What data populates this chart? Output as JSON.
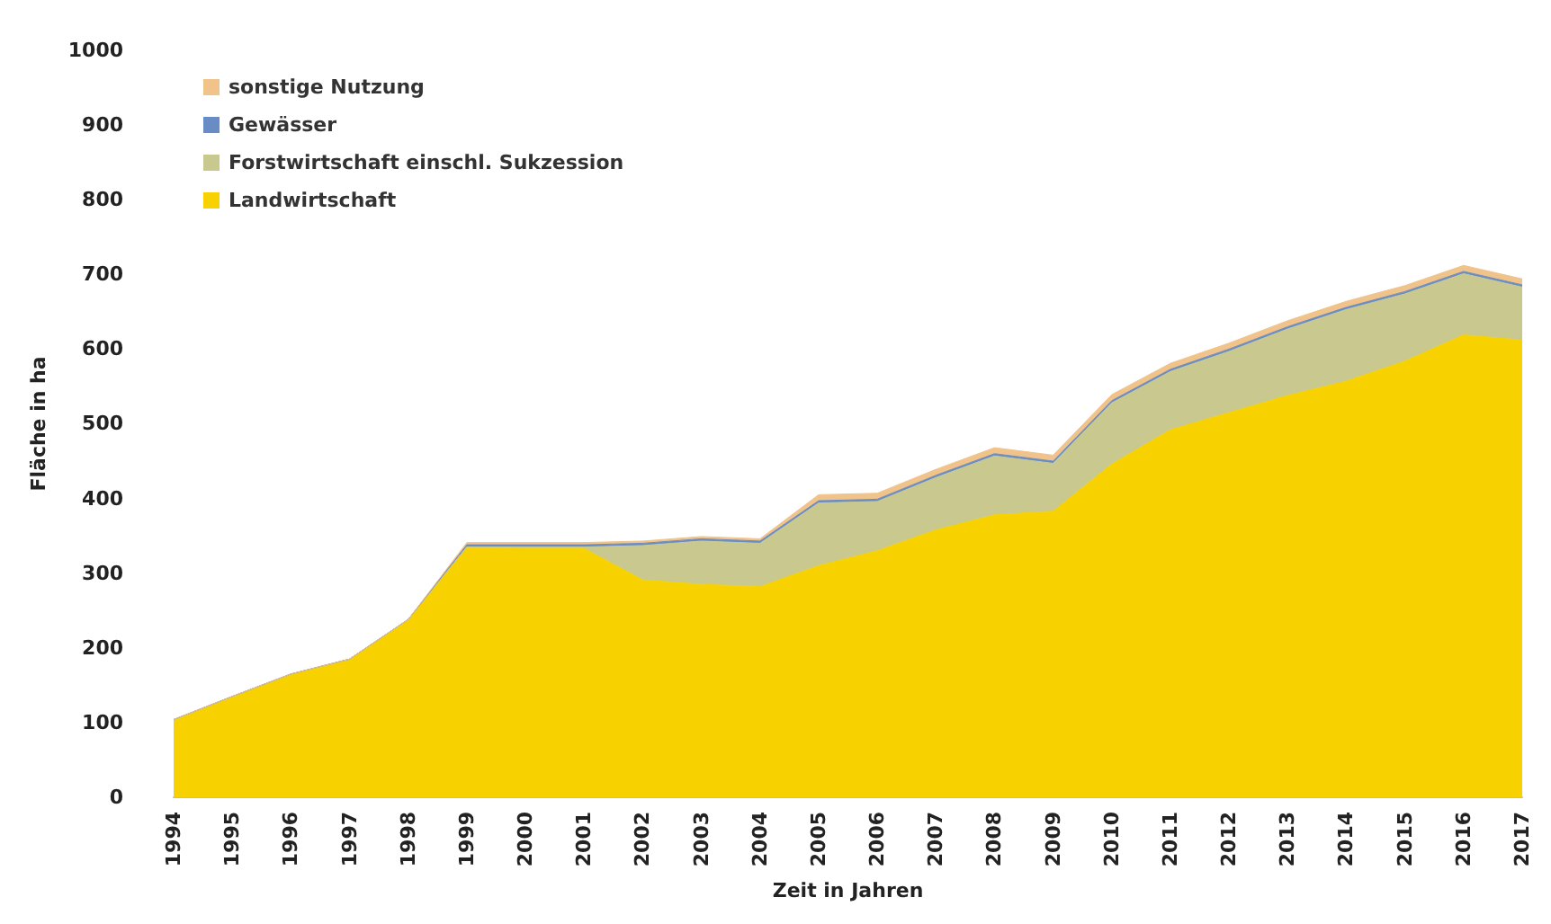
{
  "chart_data": {
    "type": "area",
    "stacked": true,
    "xlabel": "Zeit in Jahren",
    "ylabel": "Fläche in ha",
    "categories": [
      "1994",
      "1995",
      "1996",
      "1997",
      "1998",
      "1999",
      "2000",
      "2001",
      "2002",
      "2003",
      "2004",
      "2005",
      "2006",
      "2007",
      "2008",
      "2009",
      "2010",
      "2011",
      "2012",
      "2013",
      "2014",
      "2015",
      "2016",
      "2017"
    ],
    "series": [
      {
        "name": "Landwirtschaft",
        "color": "#f7d200",
        "values": [
          104,
          135,
          165,
          185,
          238,
          335,
          333,
          333,
          291,
          285,
          282,
          310,
          330,
          358,
          378,
          383,
          446,
          492,
          515,
          538,
          557,
          584,
          619,
          612
        ]
      },
      {
        "name": "Forstwirtschaft einschl. Sukzession",
        "color": "#c9c98f",
        "values": [
          0,
          0,
          0,
          0,
          0,
          0,
          2,
          2,
          46,
          58,
          58,
          84,
          66,
          70,
          79,
          64,
          82,
          78,
          82,
          89,
          96,
          90,
          82,
          71
        ]
      },
      {
        "name": "Gewässer",
        "color": "#6a8cc4",
        "values": [
          0,
          0,
          0,
          0,
          0,
          3,
          3,
          3,
          3,
          3,
          3,
          3,
          3,
          3,
          3,
          3,
          3,
          3,
          3,
          3,
          3,
          3,
          3,
          3
        ]
      },
      {
        "name": "sonstige Nutzung",
        "color": "#f0c38a",
        "values": [
          0,
          0,
          0,
          0,
          0,
          3,
          3,
          3,
          3,
          3,
          3,
          8,
          8,
          8,
          8,
          8,
          8,
          8,
          8,
          8,
          8,
          8,
          8,
          8
        ]
      }
    ],
    "ylim": [
      0,
      1000
    ],
    "yticks": [
      0,
      100,
      200,
      300,
      400,
      500,
      600,
      700,
      800,
      900,
      1000
    ],
    "grid": false,
    "legend": "top left"
  }
}
